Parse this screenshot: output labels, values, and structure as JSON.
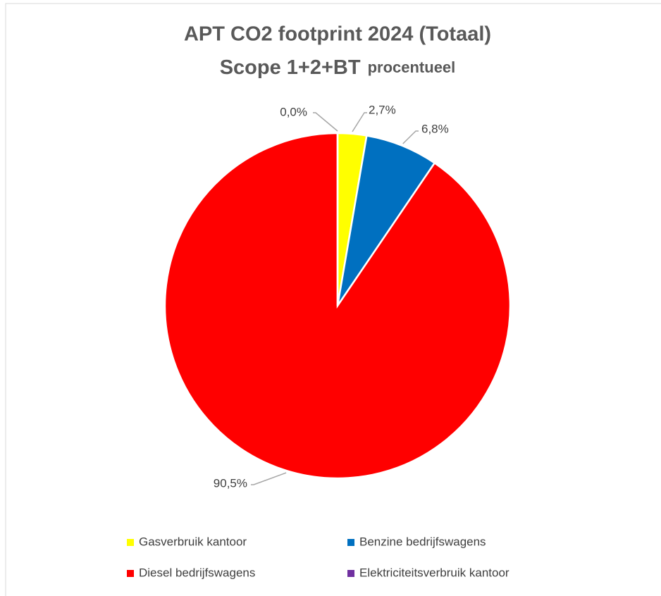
{
  "chart_data": {
    "type": "pie",
    "title": "APT CO2 footprint 2024 (Totaal)",
    "subtitle": [
      "Scope 1+2+BT",
      "procentueel"
    ],
    "categories": [
      "Gasverbruik kantoor",
      "Benzine bedrijfswagens",
      "Diesel bedrijfswagens",
      "Elektriciteitsverbruik kantoor"
    ],
    "values": [
      2.7,
      6.8,
      90.5,
      0.0
    ],
    "value_labels": [
      "2,7%",
      "6,8%",
      "90,5%",
      "0,0%"
    ],
    "colors": [
      "#ffff00",
      "#0070c0",
      "#ff0000",
      "#7030a0"
    ]
  }
}
